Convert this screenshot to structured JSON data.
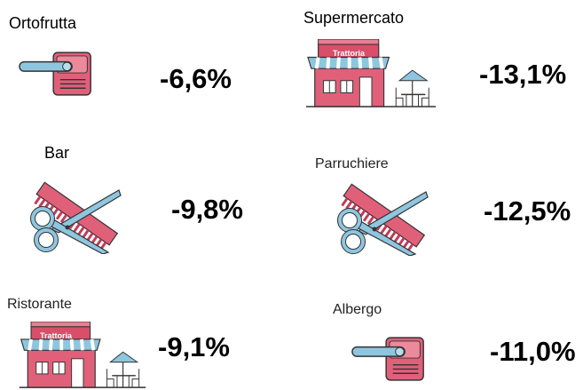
{
  "items": [
    {
      "label": "Ortofrutta",
      "value": "-6,6%"
    },
    {
      "label": "Supermercato",
      "value": "-13,1%",
      "sign": "Trattoria"
    },
    {
      "label": "Bar",
      "value": "-9,8%"
    },
    {
      "label": "Parruchiere",
      "value": "-12,5%"
    },
    {
      "label": "Ristorante",
      "value": "-9,1%",
      "sign": "Trattoria"
    },
    {
      "label": "Albergo",
      "value": "-11,0%"
    }
  ]
}
